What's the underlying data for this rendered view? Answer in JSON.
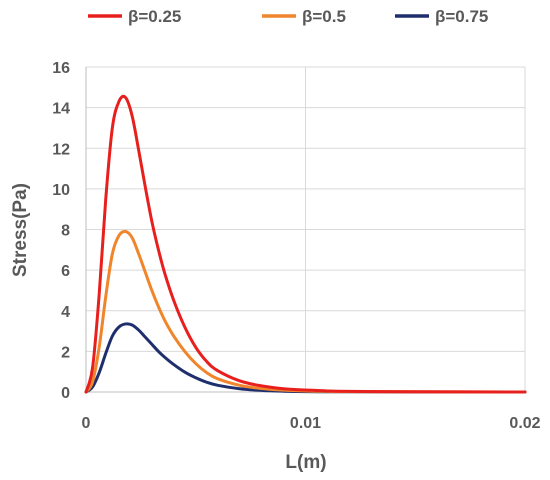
{
  "chart_data": {
    "type": "line",
    "xlabel": "L(m)",
    "ylabel": "Stress(Pa)",
    "xlim": [
      0,
      0.02
    ],
    "ylim": [
      0,
      16
    ],
    "x_ticks": [
      "0",
      "0.01",
      "0.02"
    ],
    "y_ticks": [
      "0",
      "2",
      "4",
      "6",
      "8",
      "10",
      "12",
      "14",
      "16"
    ],
    "grid": true,
    "legend_position": "top",
    "series": [
      {
        "name": "β=0.25",
        "color": "#e8201d",
        "x": [
          0,
          0.0003,
          0.0006,
          0.0009,
          0.0012,
          0.0015,
          0.0018,
          0.0021,
          0.0024,
          0.0027,
          0.003,
          0.0033,
          0.0036,
          0.004,
          0.0045,
          0.005,
          0.0055,
          0.006,
          0.007,
          0.008,
          0.009,
          0.01,
          0.011,
          0.012,
          0.015,
          0.02
        ],
        "y": [
          0,
          1.2,
          4.8,
          9.5,
          13.0,
          14.3,
          14.5,
          13.6,
          11.9,
          10.1,
          8.4,
          7.0,
          5.8,
          4.5,
          3.2,
          2.2,
          1.5,
          1.05,
          0.55,
          0.3,
          0.16,
          0.1,
          0.05,
          0.03,
          0.01,
          0
        ]
      },
      {
        "name": "β=0.5",
        "color": "#f0852b",
        "x": [
          0,
          0.0003,
          0.0006,
          0.0009,
          0.0012,
          0.0015,
          0.0018,
          0.0021,
          0.0024,
          0.0027,
          0.003,
          0.0033,
          0.0036,
          0.004,
          0.0045,
          0.005,
          0.0055,
          0.006,
          0.007,
          0.008,
          0.009,
          0.01,
          0.011,
          0.012,
          0.015,
          0.02
        ],
        "y": [
          0,
          0.5,
          2.2,
          4.7,
          6.8,
          7.7,
          7.9,
          7.6,
          6.8,
          5.9,
          5.0,
          4.2,
          3.5,
          2.75,
          2.0,
          1.4,
          0.95,
          0.65,
          0.33,
          0.17,
          0.09,
          0.05,
          0.03,
          0.02,
          0.01,
          0
        ]
      },
      {
        "name": "β=0.75",
        "color": "#1f2f6e",
        "x": [
          0,
          0.0003,
          0.0006,
          0.0009,
          0.0012,
          0.0015,
          0.0018,
          0.0021,
          0.0024,
          0.0027,
          0.003,
          0.0033,
          0.0036,
          0.004,
          0.0045,
          0.005,
          0.0055,
          0.006,
          0.007,
          0.008,
          0.009,
          0.01,
          0.011,
          0.012,
          0.015,
          0.02
        ],
        "y": [
          0,
          0.25,
          0.95,
          1.9,
          2.75,
          3.2,
          3.35,
          3.3,
          3.05,
          2.7,
          2.35,
          2.0,
          1.7,
          1.35,
          0.98,
          0.7,
          0.48,
          0.33,
          0.16,
          0.08,
          0.04,
          0.02,
          0.01,
          0.01,
          0,
          0
        ]
      }
    ]
  },
  "colors": {
    "grid": "#d9d9d9",
    "axis": "#bfbfbf",
    "text": "#595959"
  }
}
